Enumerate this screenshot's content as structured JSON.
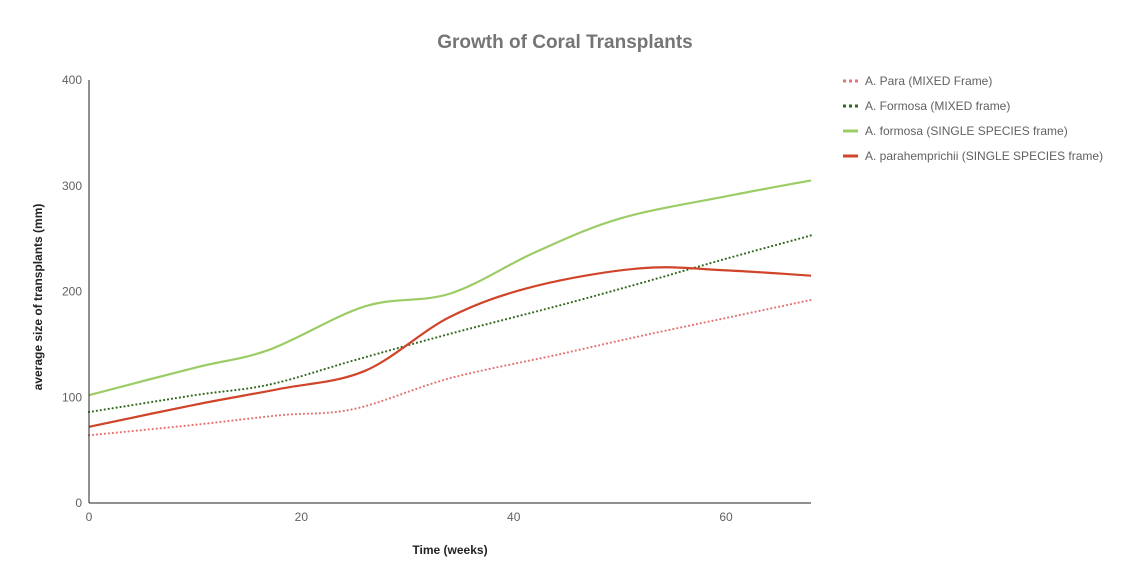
{
  "chart_data": {
    "type": "line",
    "title": "Growth of Coral Transplants",
    "xlabel": "Time (weeks)",
    "ylabel": "average size of transplants (mm)",
    "xlim": [
      0,
      68
    ],
    "ylim": [
      0,
      400
    ],
    "xticks": [
      0,
      20,
      40,
      60
    ],
    "yticks": [
      0,
      100,
      200,
      300,
      400
    ],
    "grid": false,
    "legend_position": "right",
    "series": [
      {
        "name": "A. Para (MIXED Frame)",
        "color": "#e57373",
        "style": "dotted",
        "x": [
          0,
          10,
          18,
          25,
          34,
          44,
          52,
          60,
          68
        ],
        "y": [
          64,
          74,
          83,
          89,
          118,
          140,
          158,
          175,
          192
        ]
      },
      {
        "name": "A. Formosa (MIXED frame)",
        "color": "#33691e",
        "style": "dotted",
        "x": [
          0,
          10,
          17,
          25,
          34,
          44,
          52,
          60,
          68
        ],
        "y": [
          86,
          102,
          112,
          135,
          160,
          186,
          208,
          231,
          253
        ]
      },
      {
        "name": "A. formosa (SINGLE SPECIES frame)",
        "color": "#9ccc65",
        "style": "solid",
        "x": [
          0,
          10,
          17,
          26,
          34,
          42,
          50,
          60,
          68
        ],
        "y": [
          102,
          128,
          145,
          186,
          198,
          237,
          269,
          290,
          305
        ]
      },
      {
        "name": "A. parahemprichii (SINGLE SPECIES frame)",
        "color": "#d0452a",
        "style": "solid",
        "x": [
          0,
          10,
          18,
          26,
          34,
          42,
          52,
          60,
          68
        ],
        "y": [
          72,
          93,
          108,
          125,
          176,
          205,
          222,
          220,
          215
        ]
      }
    ]
  }
}
